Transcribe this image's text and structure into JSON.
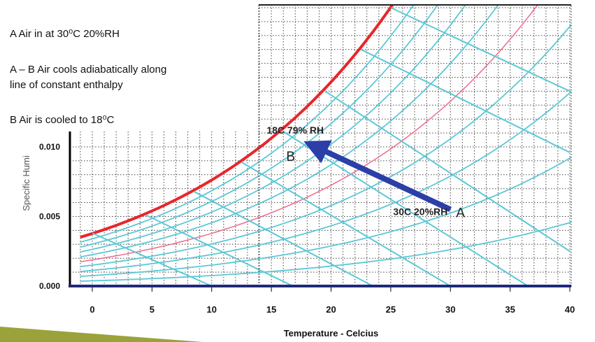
{
  "notes": {
    "line1": "A  Air in at 30⁰C 20%RH",
    "line2": "A – B Air cools adiabatically along",
    "line3": "line of constant enthalpy",
    "line4": "B Air is cooled to 18⁰C"
  },
  "chart_data": {
    "type": "line",
    "title": "",
    "xlabel": "Temperature - Celcius",
    "ylabel": "Specific Humi",
    "xlim": [
      -2,
      41
    ],
    "ylim": [
      0,
      0.0205
    ],
    "x_ticks": [
      0,
      5,
      10,
      15,
      20,
      25,
      30,
      35,
      40
    ],
    "y_ticks": [
      0.0,
      0.005,
      0.01
    ],
    "y_tick_labels": [
      "0.000",
      "0.005",
      "0.010"
    ],
    "grid": true,
    "colors": {
      "saturation": "#e8262b",
      "rh_50": "#f06a8a",
      "rh": "#5bc8d6",
      "enthalpy": "#5bc8d6",
      "process_arrow": "#2b3fa8",
      "axis": "#000000",
      "baseline": "#1f2a7a",
      "grid": "#444444"
    },
    "series": [
      {
        "kind": "saturation",
        "rh": 1.0
      },
      {
        "kind": "relative_humidity",
        "rh": 0.9
      },
      {
        "kind": "relative_humidity",
        "rh": 0.8
      },
      {
        "kind": "relative_humidity",
        "rh": 0.7
      },
      {
        "kind": "relative_humidity",
        "rh": 0.6
      },
      {
        "kind": "relative_humidity_highlight",
        "rh": 0.5
      },
      {
        "kind": "relative_humidity",
        "rh": 0.4
      },
      {
        "kind": "relative_humidity",
        "rh": 0.3
      },
      {
        "kind": "relative_humidity",
        "rh": 0.2
      },
      {
        "kind": "relative_humidity",
        "rh": 0.1
      }
    ],
    "enthalpy_lines": [
      {
        "x": 0,
        "y": 0.0038,
        "x_end": 10,
        "y_end": 0
      },
      {
        "x": 4.5,
        "y": 0.0051,
        "x_end": 16.8,
        "y_end": 0
      },
      {
        "x": 8.5,
        "y": 0.0068,
        "x_end": 23.5,
        "y_end": 0
      },
      {
        "x": 12.5,
        "y": 0.0089,
        "x_end": 30,
        "y_end": 0
      },
      {
        "x": 16,
        "y": 0.0111,
        "x_end": 36.5,
        "y_end": 0
      },
      {
        "x": 19.5,
        "y": 0.014,
        "x_end": 40,
        "y_end": 0.0025
      },
      {
        "x": 22.5,
        "y": 0.017,
        "x_end": 40,
        "y_end": 0.0096
      },
      {
        "x": 25,
        "y": 0.02,
        "x_end": 40,
        "y_end": 0.014
      }
    ],
    "process": {
      "start": {
        "label": "A",
        "x": 30,
        "y": 0.0055,
        "annotation": "30C 20%RH"
      },
      "end": {
        "label": "B",
        "x": 18,
        "y": 0.0103,
        "annotation": "18C 79% RH"
      }
    }
  }
}
